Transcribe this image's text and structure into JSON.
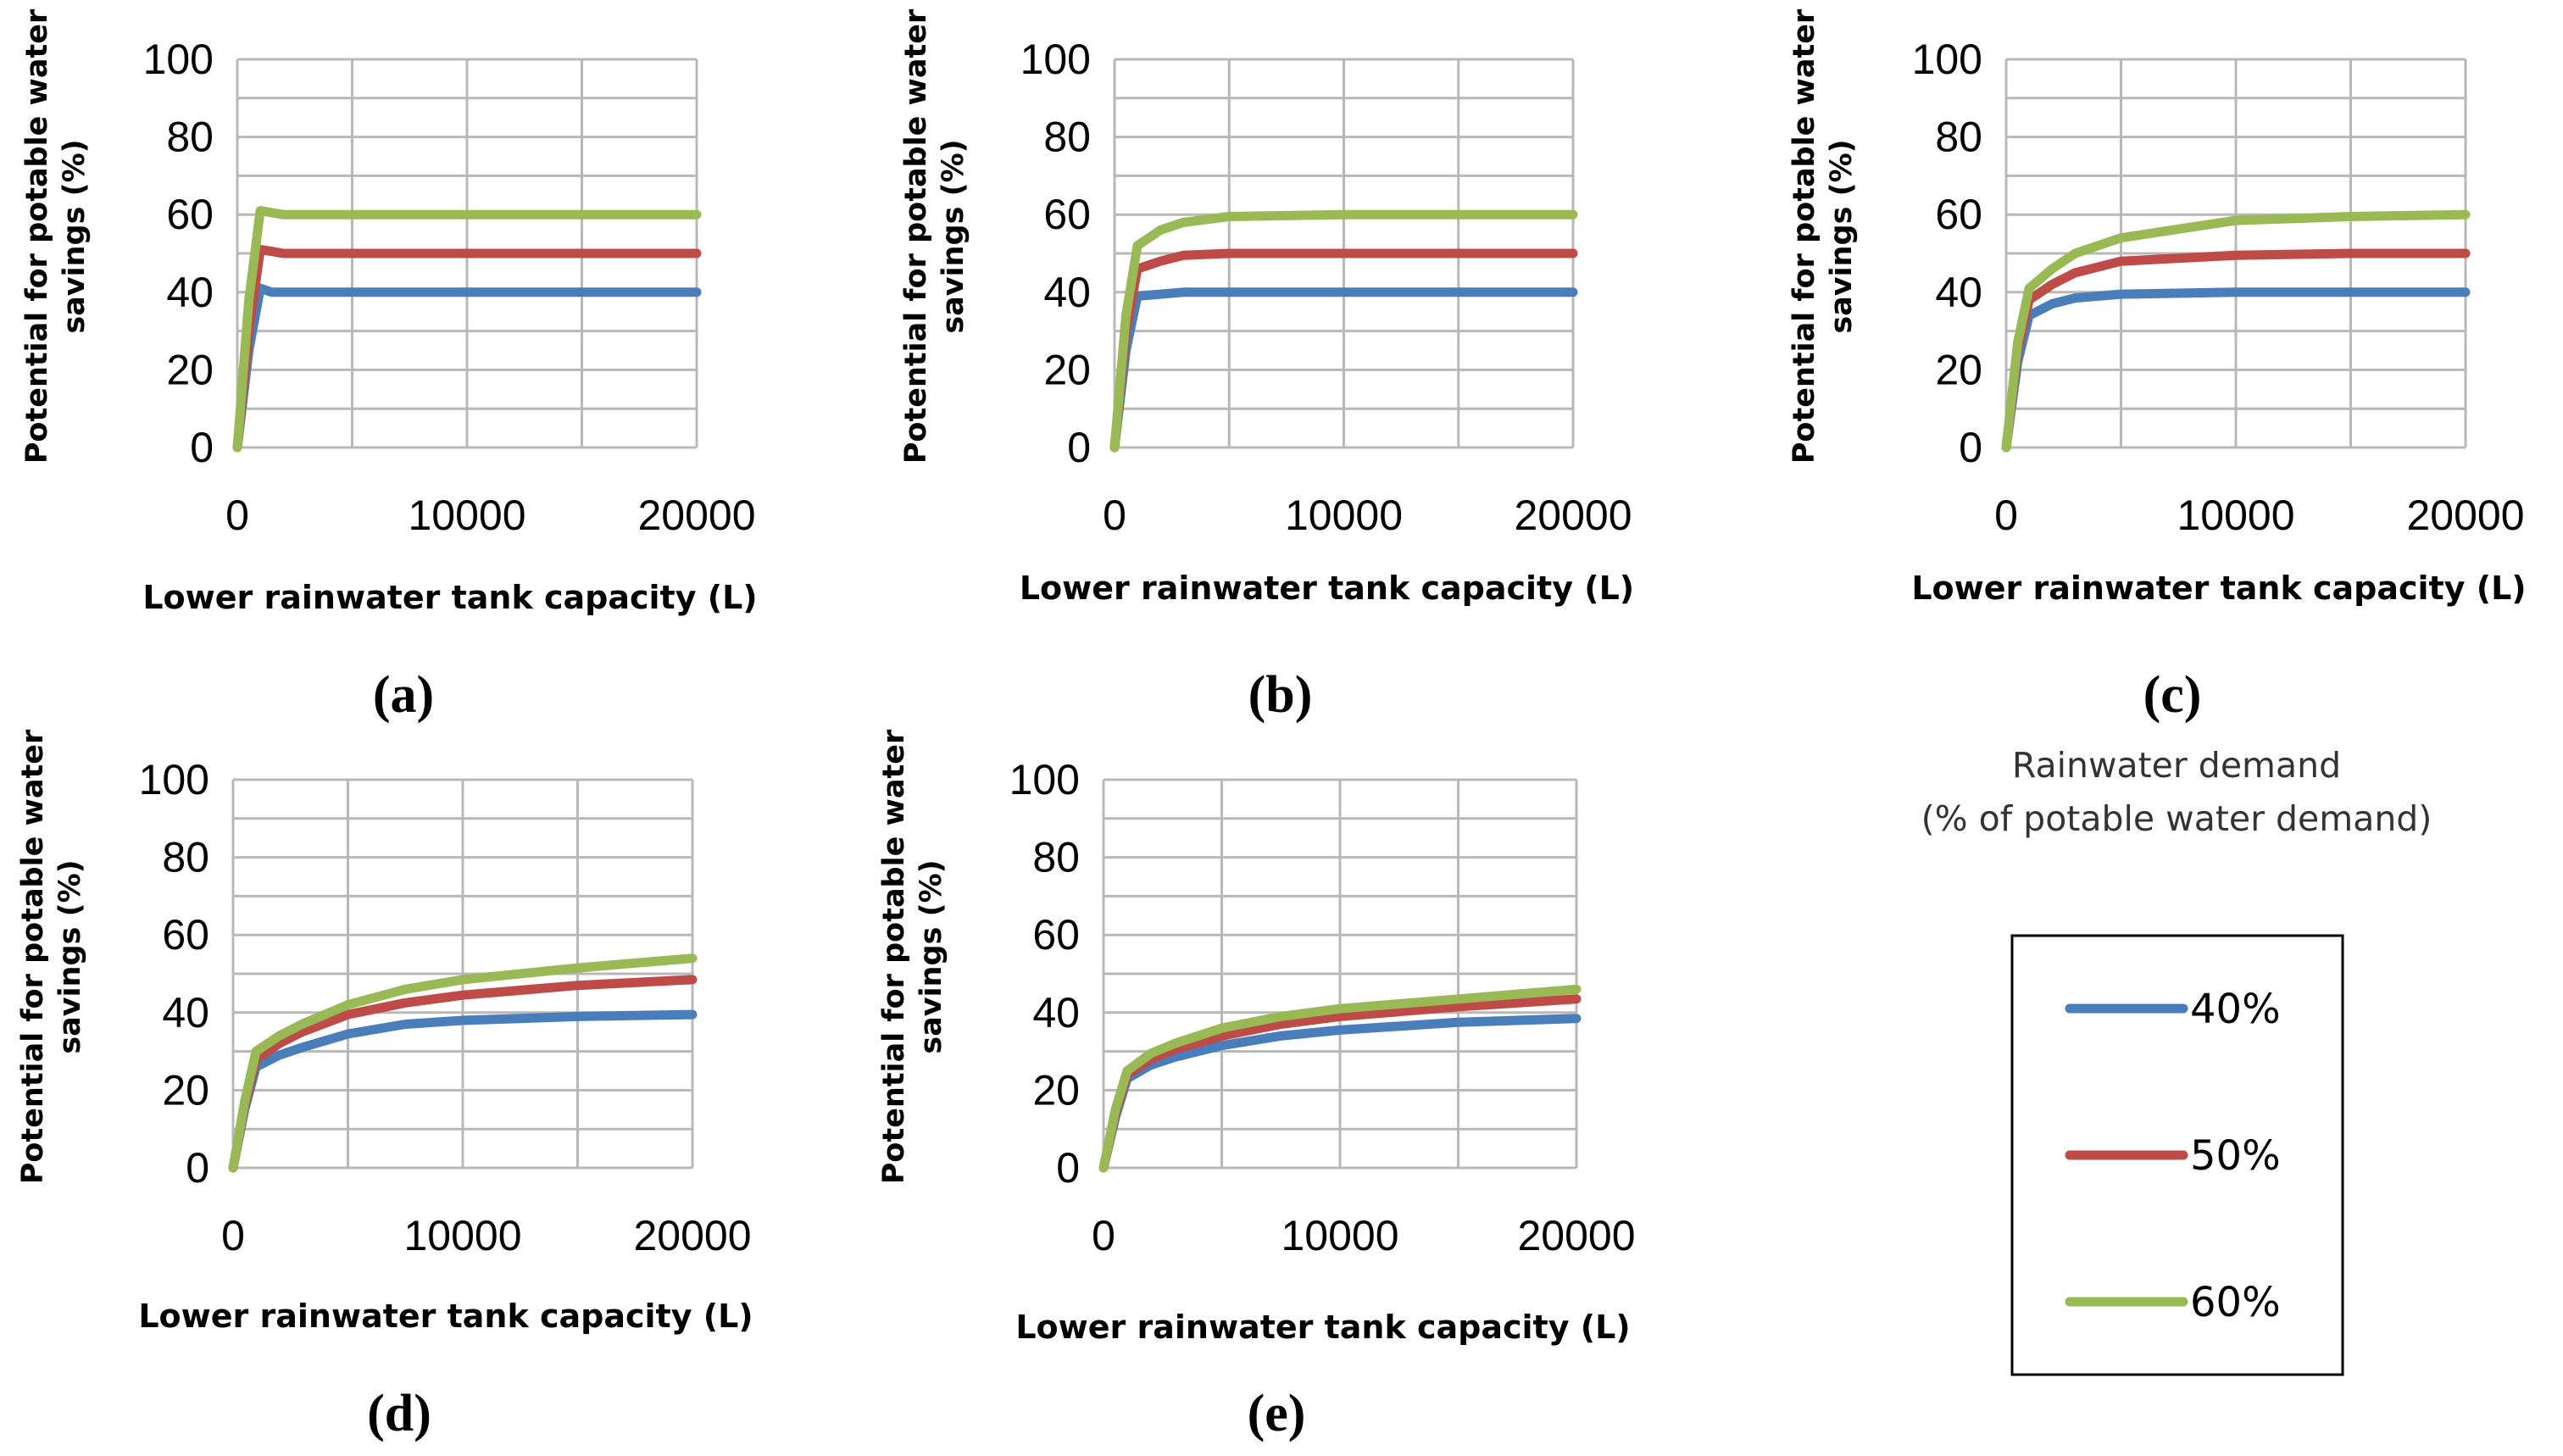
{
  "legend": {
    "title_line1": "Rainwater demand",
    "title_line2": "(% of potable water demand)",
    "entries": [
      {
        "label": "40%",
        "color": "#4a7ebb"
      },
      {
        "label": "50%",
        "color": "#be4b48"
      },
      {
        "label": "60%",
        "color": "#98b954"
      }
    ]
  },
  "chart_data": [
    {
      "type": "line",
      "panel_label": "(a)",
      "xlabel": "Lower  rainwater tank capacity (L)",
      "ylabel_line1": "Potential for potable water",
      "ylabel_line2": "savings (%)",
      "xlim": [
        0,
        20000
      ],
      "ylim": [
        0,
        100
      ],
      "x_ticks": [
        0,
        10000,
        20000
      ],
      "x_tick_labels": [
        "0",
        "10000",
        "20000"
      ],
      "y_ticks": [
        0,
        20,
        40,
        60,
        80,
        100
      ],
      "y_tick_labels": [
        "0",
        "20",
        "40",
        "60",
        "80",
        "100"
      ],
      "series": [
        {
          "name": "40%",
          "color": "#4a7ebb",
          "x": [
            0,
            500,
            1000,
            1500,
            2000,
            3000,
            5000,
            10000,
            15000,
            20000
          ],
          "values": [
            0,
            25,
            41,
            40,
            40,
            40,
            40,
            40,
            40,
            40
          ]
        },
        {
          "name": "50%",
          "color": "#be4b48",
          "x": [
            0,
            500,
            1000,
            1500,
            2000,
            3000,
            5000,
            10000,
            15000,
            20000
          ],
          "values": [
            0,
            30,
            51,
            50.5,
            50,
            50,
            50,
            50,
            50,
            50
          ]
        },
        {
          "name": "60%",
          "color": "#98b954",
          "x": [
            0,
            500,
            1000,
            1500,
            2000,
            3000,
            5000,
            10000,
            15000,
            20000
          ],
          "values": [
            0,
            38,
            61,
            60.5,
            60,
            60,
            60,
            60,
            60,
            60
          ]
        }
      ]
    },
    {
      "type": "line",
      "panel_label": "(b)",
      "xlabel": "Lower  rainwater tank capacity (L)",
      "ylabel_line1": "Potential for potable water",
      "ylabel_line2": "savings (%)",
      "xlim": [
        0,
        20000
      ],
      "ylim": [
        0,
        100
      ],
      "x_ticks": [
        0,
        10000,
        20000
      ],
      "x_tick_labels": [
        "0",
        "10000",
        "20000"
      ],
      "y_ticks": [
        0,
        20,
        40,
        60,
        80,
        100
      ],
      "y_tick_labels": [
        "0",
        "20",
        "40",
        "60",
        "80",
        "100"
      ],
      "series": [
        {
          "name": "40%",
          "color": "#4a7ebb",
          "x": [
            0,
            500,
            1000,
            2000,
            3000,
            5000,
            10000,
            15000,
            20000
          ],
          "values": [
            0,
            25,
            39,
            39.5,
            40,
            40,
            40,
            40,
            40
          ]
        },
        {
          "name": "50%",
          "color": "#be4b48",
          "x": [
            0,
            500,
            1000,
            2000,
            3000,
            5000,
            10000,
            15000,
            20000
          ],
          "values": [
            0,
            30,
            46,
            48,
            49.5,
            50,
            50,
            50,
            50
          ]
        },
        {
          "name": "60%",
          "color": "#98b954",
          "x": [
            0,
            500,
            1000,
            2000,
            3000,
            5000,
            10000,
            15000,
            20000
          ],
          "values": [
            0,
            34,
            52,
            56,
            58,
            59.5,
            60,
            60,
            60
          ]
        }
      ]
    },
    {
      "type": "line",
      "panel_label": "(c)",
      "xlabel": "Lower  rainwater tank capacity (L)",
      "ylabel_line1": "Potential for potable water",
      "ylabel_line2": "savings (%)",
      "xlim": [
        0,
        20000
      ],
      "ylim": [
        0,
        100
      ],
      "x_ticks": [
        0,
        10000,
        20000
      ],
      "x_tick_labels": [
        "0",
        "10000",
        "20000"
      ],
      "y_ticks": [
        0,
        20,
        40,
        60,
        80,
        100
      ],
      "y_tick_labels": [
        "0",
        "20",
        "40",
        "60",
        "80",
        "100"
      ],
      "series": [
        {
          "name": "40%",
          "color": "#4a7ebb",
          "x": [
            0,
            500,
            1000,
            2000,
            3000,
            5000,
            10000,
            15000,
            20000
          ],
          "values": [
            0,
            22,
            34,
            37,
            38.5,
            39.5,
            40,
            40,
            40
          ]
        },
        {
          "name": "50%",
          "color": "#be4b48",
          "x": [
            0,
            500,
            1000,
            2000,
            3000,
            5000,
            10000,
            15000,
            20000
          ],
          "values": [
            0,
            25,
            38,
            42,
            45,
            48,
            49.5,
            50,
            50
          ]
        },
        {
          "name": "60%",
          "color": "#98b954",
          "x": [
            0,
            500,
            1000,
            2000,
            3000,
            5000,
            10000,
            15000,
            20000
          ],
          "values": [
            0,
            27,
            41,
            46,
            50,
            54,
            58.5,
            59.5,
            60
          ]
        }
      ]
    },
    {
      "type": "line",
      "panel_label": "(d)",
      "xlabel": "Lower  rainwater tank capacity (L)",
      "ylabel_line1": "Potential for potable water",
      "ylabel_line2": "savings (%)",
      "xlim": [
        0,
        20000
      ],
      "ylim": [
        0,
        100
      ],
      "x_ticks": [
        0,
        10000,
        20000
      ],
      "x_tick_labels": [
        "0",
        "10000",
        "20000"
      ],
      "y_ticks": [
        0,
        20,
        40,
        60,
        80,
        100
      ],
      "y_tick_labels": [
        "0",
        "20",
        "40",
        "60",
        "80",
        "100"
      ],
      "series": [
        {
          "name": "40%",
          "color": "#4a7ebb",
          "x": [
            0,
            500,
            1000,
            2000,
            3000,
            5000,
            7500,
            10000,
            15000,
            20000
          ],
          "values": [
            0,
            15,
            26,
            29,
            31,
            34.5,
            37,
            38,
            39,
            39.5
          ]
        },
        {
          "name": "50%",
          "color": "#be4b48",
          "x": [
            0,
            500,
            1000,
            2000,
            3000,
            5000,
            7500,
            10000,
            15000,
            20000
          ],
          "values": [
            0,
            16,
            28,
            32,
            35,
            39.5,
            42.5,
            44.5,
            47,
            48.5
          ]
        },
        {
          "name": "60%",
          "color": "#98b954",
          "x": [
            0,
            500,
            1000,
            2000,
            3000,
            5000,
            7500,
            10000,
            15000,
            20000
          ],
          "values": [
            0,
            17,
            30,
            34,
            37,
            42,
            46,
            48.5,
            51.5,
            54
          ]
        }
      ]
    },
    {
      "type": "line",
      "panel_label": "(e)",
      "xlabel": "Lower  rainwater tank capacity (L)",
      "ylabel_line1": "Potential for potable water",
      "ylabel_line2": "savings (%)",
      "xlim": [
        0,
        20000
      ],
      "ylim": [
        0,
        100
      ],
      "x_ticks": [
        0,
        10000,
        20000
      ],
      "x_tick_labels": [
        "0",
        "10000",
        "20000"
      ],
      "y_ticks": [
        0,
        20,
        40,
        60,
        80,
        100
      ],
      "y_tick_labels": [
        "0",
        "20",
        "40",
        "60",
        "80",
        "100"
      ],
      "series": [
        {
          "name": "40%",
          "color": "#4a7ebb",
          "x": [
            0,
            500,
            1000,
            2000,
            3000,
            5000,
            7500,
            10000,
            15000,
            20000
          ],
          "values": [
            0,
            13,
            23,
            26.5,
            28.5,
            31.5,
            34,
            35.5,
            37.5,
            38.5
          ]
        },
        {
          "name": "50%",
          "color": "#be4b48",
          "x": [
            0,
            500,
            1000,
            2000,
            3000,
            5000,
            7500,
            10000,
            15000,
            20000
          ],
          "values": [
            0,
            14,
            24,
            28,
            30.5,
            34,
            37,
            39,
            41.5,
            43.5
          ]
        },
        {
          "name": "60%",
          "color": "#98b954",
          "x": [
            0,
            500,
            1000,
            2000,
            3000,
            5000,
            7500,
            10000,
            15000,
            20000
          ],
          "values": [
            0,
            15,
            25,
            29.5,
            32,
            36,
            39,
            41,
            43.5,
            46
          ]
        }
      ]
    }
  ]
}
